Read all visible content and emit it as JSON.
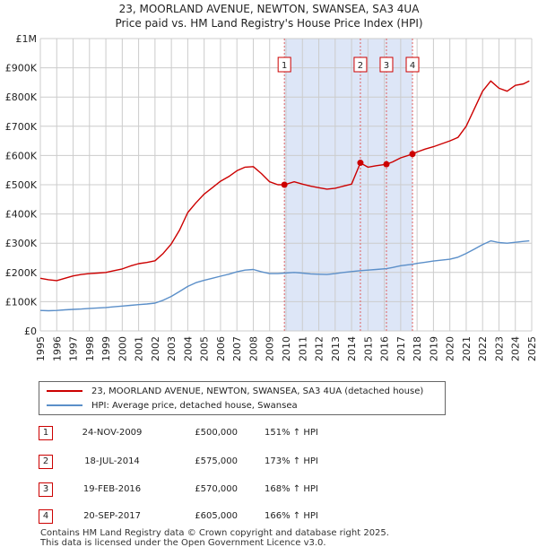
{
  "title_line1": "23, MOORLAND AVENUE, NEWTON, SWANSEA, SA3 4UA",
  "title_line2": "Price paid vs. HM Land Registry's House Price Index (HPI)",
  "colors": {
    "property": "#cc0000",
    "hpi": "#5b8fc9",
    "shade": "#dde6f7",
    "grid": "#cccccc",
    "marker_border": "#cc0000"
  },
  "chart_data": {
    "type": "line",
    "xlim": [
      1995,
      2025
    ],
    "ylim": [
      0,
      1000000
    ],
    "y_ticks": [
      0,
      100000,
      200000,
      300000,
      400000,
      500000,
      600000,
      700000,
      800000,
      900000,
      1000000
    ],
    "y_tick_labels": [
      "£0",
      "£100K",
      "£200K",
      "£300K",
      "£400K",
      "£500K",
      "£600K",
      "£700K",
      "£800K",
      "£900K",
      "£1M"
    ],
    "x_ticks": [
      1995,
      1996,
      1997,
      1998,
      1999,
      2000,
      2001,
      2002,
      2003,
      2004,
      2005,
      2006,
      2007,
      2008,
      2009,
      2010,
      2011,
      2012,
      2013,
      2014,
      2015,
      2016,
      2017,
      2018,
      2019,
      2020,
      2021,
      2022,
      2023,
      2024,
      2025
    ],
    "x_tick_labels": [
      "1995",
      "1996",
      "1997",
      "1998",
      "1999",
      "2000",
      "2001",
      "2002",
      "2003",
      "2004",
      "2005",
      "2006",
      "2007",
      "2008",
      "2009",
      "2010",
      "2011",
      "2012",
      "2013",
      "2014",
      "2015",
      "2016",
      "2017",
      "2018",
      "2019",
      "2020",
      "2021",
      "2022",
      "2023",
      "2024",
      "2025"
    ],
    "shaded_range": [
      2009.9,
      2017.72
    ],
    "series": [
      {
        "name": "23, MOORLAND AVENUE, NEWTON, SWANSEA, SA3 4UA (detached house)",
        "key": "property",
        "points": [
          [
            1995.0,
            180000
          ],
          [
            1995.5,
            175000
          ],
          [
            1996.0,
            172000
          ],
          [
            1996.5,
            180000
          ],
          [
            1997.0,
            188000
          ],
          [
            1997.5,
            193000
          ],
          [
            1998.0,
            196000
          ],
          [
            1998.5,
            198000
          ],
          [
            1999.0,
            200000
          ],
          [
            1999.5,
            206000
          ],
          [
            2000.0,
            212000
          ],
          [
            2000.5,
            222000
          ],
          [
            2001.0,
            230000
          ],
          [
            2001.5,
            234000
          ],
          [
            2002.0,
            240000
          ],
          [
            2002.5,
            265000
          ],
          [
            2003.0,
            298000
          ],
          [
            2003.5,
            345000
          ],
          [
            2004.0,
            405000
          ],
          [
            2004.5,
            438000
          ],
          [
            2005.0,
            468000
          ],
          [
            2005.5,
            490000
          ],
          [
            2006.0,
            512000
          ],
          [
            2006.5,
            528000
          ],
          [
            2007.0,
            548000
          ],
          [
            2007.5,
            560000
          ],
          [
            2008.0,
            562000
          ],
          [
            2008.5,
            538000
          ],
          [
            2009.0,
            510000
          ],
          [
            2009.5,
            500000
          ],
          [
            2009.9,
            500000
          ],
          [
            2010.5,
            510000
          ],
          [
            2011.0,
            502000
          ],
          [
            2011.5,
            495000
          ],
          [
            2012.0,
            490000
          ],
          [
            2012.5,
            485000
          ],
          [
            2013.0,
            488000
          ],
          [
            2013.5,
            495000
          ],
          [
            2014.0,
            502000
          ],
          [
            2014.54,
            575000
          ],
          [
            2015.0,
            560000
          ],
          [
            2015.5,
            565000
          ],
          [
            2016.13,
            570000
          ],
          [
            2016.5,
            578000
          ],
          [
            2017.0,
            592000
          ],
          [
            2017.72,
            605000
          ],
          [
            2018.0,
            612000
          ],
          [
            2018.5,
            622000
          ],
          [
            2019.0,
            630000
          ],
          [
            2019.5,
            640000
          ],
          [
            2020.0,
            650000
          ],
          [
            2020.5,
            662000
          ],
          [
            2021.0,
            700000
          ],
          [
            2021.5,
            760000
          ],
          [
            2022.0,
            820000
          ],
          [
            2022.5,
            855000
          ],
          [
            2023.0,
            830000
          ],
          [
            2023.5,
            820000
          ],
          [
            2024.0,
            840000
          ],
          [
            2024.5,
            845000
          ],
          [
            2024.85,
            855000
          ]
        ]
      },
      {
        "name": "HPI: Average price, detached house, Swansea",
        "key": "hpi",
        "points": [
          [
            1995.0,
            70000
          ],
          [
            1995.5,
            69000
          ],
          [
            1996.0,
            70000
          ],
          [
            1996.5,
            72000
          ],
          [
            1997.0,
            73500
          ],
          [
            1997.5,
            75000
          ],
          [
            1998.0,
            77000
          ],
          [
            1998.5,
            78500
          ],
          [
            1999.0,
            80000
          ],
          [
            1999.5,
            82500
          ],
          [
            2000.0,
            85000
          ],
          [
            2000.5,
            87500
          ],
          [
            2001.0,
            90000
          ],
          [
            2001.5,
            92000
          ],
          [
            2002.0,
            95000
          ],
          [
            2002.5,
            105000
          ],
          [
            2003.0,
            118000
          ],
          [
            2003.5,
            135000
          ],
          [
            2004.0,
            152000
          ],
          [
            2004.5,
            165000
          ],
          [
            2005.0,
            173000
          ],
          [
            2005.5,
            180000
          ],
          [
            2006.0,
            187000
          ],
          [
            2006.5,
            194000
          ],
          [
            2007.0,
            202000
          ],
          [
            2007.5,
            208000
          ],
          [
            2008.0,
            210000
          ],
          [
            2008.5,
            202000
          ],
          [
            2009.0,
            196000
          ],
          [
            2009.5,
            196000
          ],
          [
            2009.9,
            198000
          ],
          [
            2010.5,
            200000
          ],
          [
            2011.0,
            198000
          ],
          [
            2011.5,
            195000
          ],
          [
            2012.0,
            194000
          ],
          [
            2012.5,
            193000
          ],
          [
            2013.0,
            196000
          ],
          [
            2013.5,
            200000
          ],
          [
            2014.0,
            203000
          ],
          [
            2014.54,
            206000
          ],
          [
            2015.0,
            208000
          ],
          [
            2015.5,
            210000
          ],
          [
            2016.13,
            213000
          ],
          [
            2016.5,
            217000
          ],
          [
            2017.0,
            223000
          ],
          [
            2017.72,
            228000
          ],
          [
            2018.0,
            231000
          ],
          [
            2018.5,
            235000
          ],
          [
            2019.0,
            239000
          ],
          [
            2019.5,
            242000
          ],
          [
            2020.0,
            245000
          ],
          [
            2020.5,
            252000
          ],
          [
            2021.0,
            265000
          ],
          [
            2021.5,
            280000
          ],
          [
            2022.0,
            295000
          ],
          [
            2022.5,
            308000
          ],
          [
            2023.0,
            302000
          ],
          [
            2023.5,
            300000
          ],
          [
            2024.0,
            303000
          ],
          [
            2024.5,
            306000
          ],
          [
            2024.85,
            308000
          ]
        ]
      }
    ],
    "sales": [
      {
        "label": "1",
        "x": 2009.9,
        "price": 500000
      },
      {
        "label": "2",
        "x": 2014.54,
        "price": 575000
      },
      {
        "label": "3",
        "x": 2016.13,
        "price": 570000
      },
      {
        "label": "4",
        "x": 2017.72,
        "price": 605000
      }
    ]
  },
  "legend": {
    "property_label": "23, MOORLAND AVENUE, NEWTON, SWANSEA, SA3 4UA (detached house)",
    "hpi_label": "HPI: Average price, detached house, Swansea"
  },
  "transactions": [
    {
      "num": "1",
      "date": "24-NOV-2009",
      "price": "£500,000",
      "hpi": "151% ↑ HPI"
    },
    {
      "num": "2",
      "date": "18-JUL-2014",
      "price": "£575,000",
      "hpi": "173% ↑ HPI"
    },
    {
      "num": "3",
      "date": "19-FEB-2016",
      "price": "£570,000",
      "hpi": "168% ↑ HPI"
    },
    {
      "num": "4",
      "date": "20-SEP-2017",
      "price": "£605,000",
      "hpi": "166% ↑ HPI"
    }
  ],
  "footer_line1": "Contains HM Land Registry data © Crown copyright and database right 2025.",
  "footer_line2": "This data is licensed under the Open Government Licence v3.0."
}
